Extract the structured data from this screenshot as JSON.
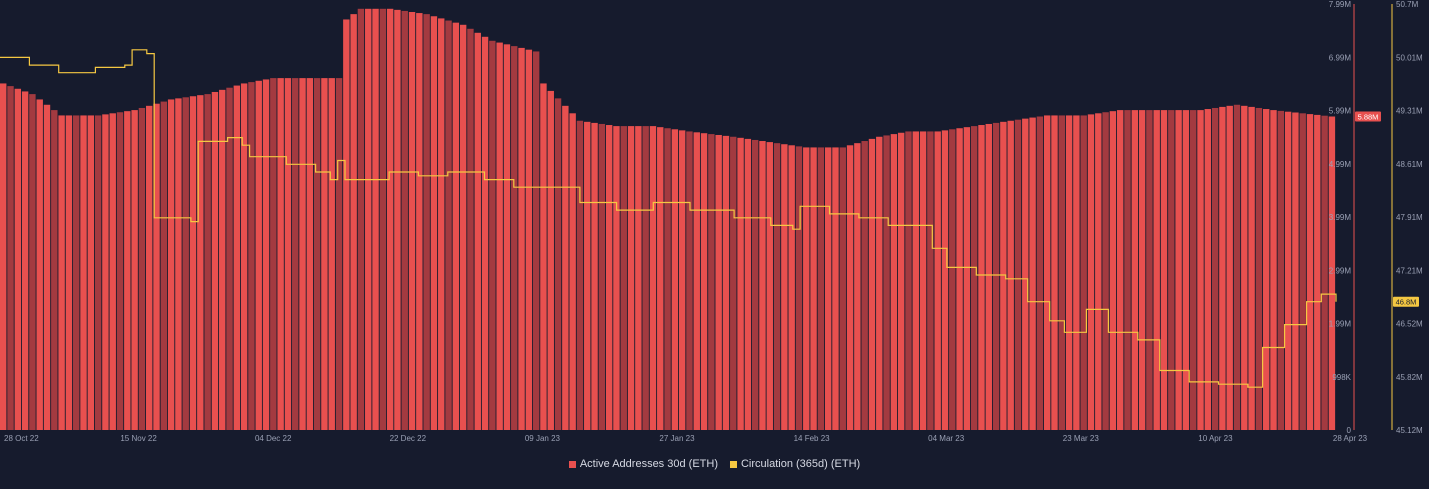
{
  "chart_data": {
    "type": "bar",
    "colors": {
      "bars": "#e8504f",
      "bars_dark": "#a33a40",
      "line": "#f5c842",
      "background": "#161b2d"
    },
    "x_tick_labels": [
      "28 Oct 22",
      "15 Nov 22",
      "04 Dec 22",
      "22 Dec 22",
      "09 Jan 23",
      "27 Jan 23",
      "14 Feb 23",
      "04 Mar 23",
      "23 Mar 23",
      "10 Apr 23",
      "28 Apr 23"
    ],
    "x_range": [
      "2022-10-28",
      "2023-04-28"
    ],
    "y_left": {
      "tick_labels": [
        "0",
        "998K",
        "1.99M",
        "2.99M",
        "3.99M",
        "4.99M",
        "5.99M",
        "6.99M",
        "7.99M"
      ],
      "min": 0,
      "max": 7990000,
      "current_value_label": "5.88M"
    },
    "y_right": {
      "tick_labels": [
        "45.12M",
        "45.82M",
        "46.52M",
        "47.21M",
        "47.91M",
        "48.61M",
        "49.31M",
        "50.01M",
        "50.7M"
      ],
      "min": 45120000,
      "max": 50700000,
      "current_value_label": "46.8M"
    },
    "series": [
      {
        "name": "Active Addresses 30d (ETH)",
        "kind": "bar",
        "axis": "left",
        "points": [
          [
            "2022-10-28",
            6.5
          ],
          [
            "2022-11-01",
            6.3
          ],
          [
            "2022-11-05",
            5.9
          ],
          [
            "2022-11-10",
            5.9
          ],
          [
            "2022-11-15",
            6.0
          ],
          [
            "2022-11-20",
            6.2
          ],
          [
            "2022-11-25",
            6.3
          ],
          [
            "2022-11-30",
            6.5
          ],
          [
            "2022-12-04",
            6.6
          ],
          [
            "2022-12-10",
            6.6
          ],
          [
            "2022-12-13",
            6.6
          ],
          [
            "2022-12-14",
            7.7
          ],
          [
            "2022-12-16",
            7.9
          ],
          [
            "2022-12-20",
            7.9
          ],
          [
            "2022-12-25",
            7.8
          ],
          [
            "2022-12-30",
            7.6
          ],
          [
            "2023-01-03",
            7.3
          ],
          [
            "2023-01-06",
            7.2
          ],
          [
            "2023-01-09",
            7.1
          ],
          [
            "2023-01-10",
            6.5
          ],
          [
            "2023-01-15",
            5.8
          ],
          [
            "2023-01-20",
            5.7
          ],
          [
            "2023-01-25",
            5.7
          ],
          [
            "2023-01-30",
            5.6
          ],
          [
            "2023-02-05",
            5.5
          ],
          [
            "2023-02-10",
            5.4
          ],
          [
            "2023-02-15",
            5.3
          ],
          [
            "2023-02-20",
            5.3
          ],
          [
            "2023-02-25",
            5.5
          ],
          [
            "2023-03-01",
            5.6
          ],
          [
            "2023-03-05",
            5.6
          ],
          [
            "2023-03-10",
            5.7
          ],
          [
            "2023-03-15",
            5.8
          ],
          [
            "2023-03-20",
            5.9
          ],
          [
            "2023-03-25",
            5.9
          ],
          [
            "2023-03-30",
            6.0
          ],
          [
            "2023-04-05",
            6.0
          ],
          [
            "2023-04-10",
            6.0
          ],
          [
            "2023-04-15",
            6.1
          ],
          [
            "2023-04-20",
            6.0
          ],
          [
            "2023-04-28",
            5.88
          ]
        ]
      },
      {
        "name": "Circulation (365d) (ETH)",
        "kind": "line",
        "axis": "right",
        "points": [
          [
            "2022-10-28",
            50.0
          ],
          [
            "2022-11-01",
            49.9
          ],
          [
            "2022-11-05",
            49.8
          ],
          [
            "2022-11-10",
            49.87
          ],
          [
            "2022-11-14",
            49.9
          ],
          [
            "2022-11-15",
            50.1
          ],
          [
            "2022-11-17",
            50.05
          ],
          [
            "2022-11-18",
            47.9
          ],
          [
            "2022-11-22",
            47.9
          ],
          [
            "2022-11-23",
            47.85
          ],
          [
            "2022-11-24",
            48.9
          ],
          [
            "2022-11-28",
            48.95
          ],
          [
            "2022-11-30",
            48.85
          ],
          [
            "2022-12-01",
            48.7
          ],
          [
            "2022-12-06",
            48.6
          ],
          [
            "2022-12-10",
            48.5
          ],
          [
            "2022-12-12",
            48.4
          ],
          [
            "2022-12-13",
            48.65
          ],
          [
            "2022-12-14",
            48.4
          ],
          [
            "2022-12-20",
            48.5
          ],
          [
            "2022-12-24",
            48.45
          ],
          [
            "2022-12-28",
            48.5
          ],
          [
            "2023-01-02",
            48.4
          ],
          [
            "2023-01-06",
            48.3
          ],
          [
            "2023-01-10",
            48.3
          ],
          [
            "2023-01-15",
            48.1
          ],
          [
            "2023-01-20",
            48.0
          ],
          [
            "2023-01-25",
            48.1
          ],
          [
            "2023-01-30",
            48.0
          ],
          [
            "2023-02-05",
            47.9
          ],
          [
            "2023-02-10",
            47.8
          ],
          [
            "2023-02-13",
            47.75
          ],
          [
            "2023-02-14",
            48.05
          ],
          [
            "2023-02-18",
            47.95
          ],
          [
            "2023-02-22",
            47.9
          ],
          [
            "2023-02-26",
            47.8
          ],
          [
            "2023-03-01",
            47.8
          ],
          [
            "2023-03-04",
            47.5
          ],
          [
            "2023-03-06",
            47.25
          ],
          [
            "2023-03-10",
            47.15
          ],
          [
            "2023-03-14",
            47.1
          ],
          [
            "2023-03-17",
            46.8
          ],
          [
            "2023-03-20",
            46.55
          ],
          [
            "2023-03-22",
            46.4
          ],
          [
            "2023-03-25",
            46.7
          ],
          [
            "2023-03-28",
            46.4
          ],
          [
            "2023-04-01",
            46.3
          ],
          [
            "2023-04-04",
            45.9
          ],
          [
            "2023-04-08",
            45.75
          ],
          [
            "2023-04-12",
            45.72
          ],
          [
            "2023-04-16",
            45.68
          ],
          [
            "2023-04-18",
            46.2
          ],
          [
            "2023-04-21",
            46.5
          ],
          [
            "2023-04-24",
            46.8
          ],
          [
            "2023-04-26",
            46.9
          ],
          [
            "2023-04-28",
            46.8
          ]
        ]
      }
    ],
    "legend_position": "bottom-center",
    "grid": false
  }
}
